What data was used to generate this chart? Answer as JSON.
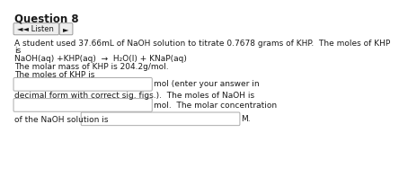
{
  "title": "Question 8",
  "bg_color": "#ffffff",
  "text_color": "#1a1a1a",
  "listen_btn_color": "#eeeeee",
  "listen_btn_border": "#999999",
  "input_box_color": "#ffffff",
  "input_box_border": "#aaaaaa",
  "line1a": "A student used 37.66mL of NaOH solution to titrate 0.7678 grams of KHP.  The moles of KHP",
  "line1b": "is",
  "line2": "NaOH(aq) +KHP(aq)  →  H₂O(l) + KNaP(aq)",
  "line3": "The molar mass of KHP is 204.2g/mol.",
  "line4": "The moles of KHP is",
  "line5_after": "mol (enter your answer in",
  "line6": "decimal form with correct sig. figs.).  The moles of NaOH is",
  "line7_after": "mol.  The molar concentration",
  "line8_pre": "of the NaOH solution is",
  "line8_after": "M.",
  "font_size": 6.5,
  "title_font_size": 8.5,
  "listen_font_size": 6.0
}
